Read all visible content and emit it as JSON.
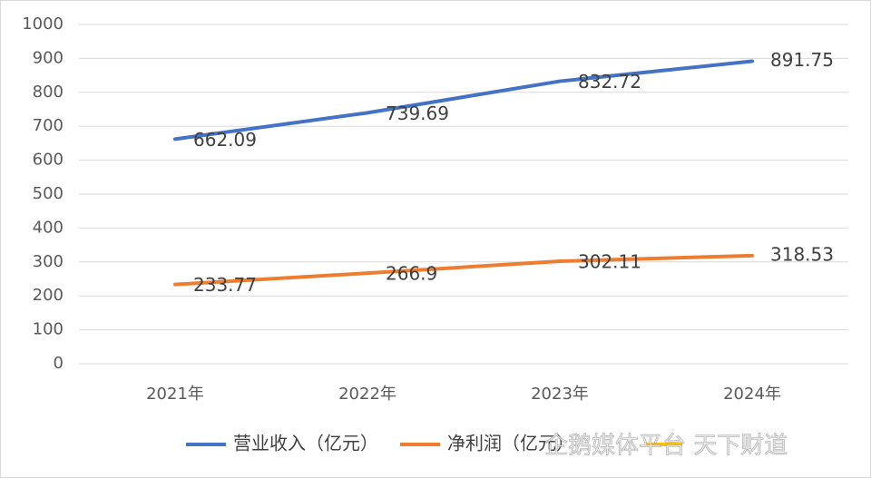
{
  "chart_data": {
    "type": "line",
    "categories": [
      "2021年",
      "2022年",
      "2023年",
      "2024年"
    ],
    "series": [
      {
        "name": "营业收入（亿元）",
        "color": "#4472c4",
        "values": [
          662.09,
          739.69,
          832.72,
          891.75
        ]
      },
      {
        "name": "净利润（亿元）",
        "color": "#ed7d31",
        "values": [
          233.77,
          266.9,
          302.11,
          318.53
        ]
      }
    ],
    "ylim": [
      0,
      1000
    ],
    "yticks": [
      0,
      100,
      200,
      300,
      400,
      500,
      600,
      700,
      800,
      900,
      1000
    ],
    "grid": true
  },
  "watermark": "企鹅媒体平台 天下财道"
}
